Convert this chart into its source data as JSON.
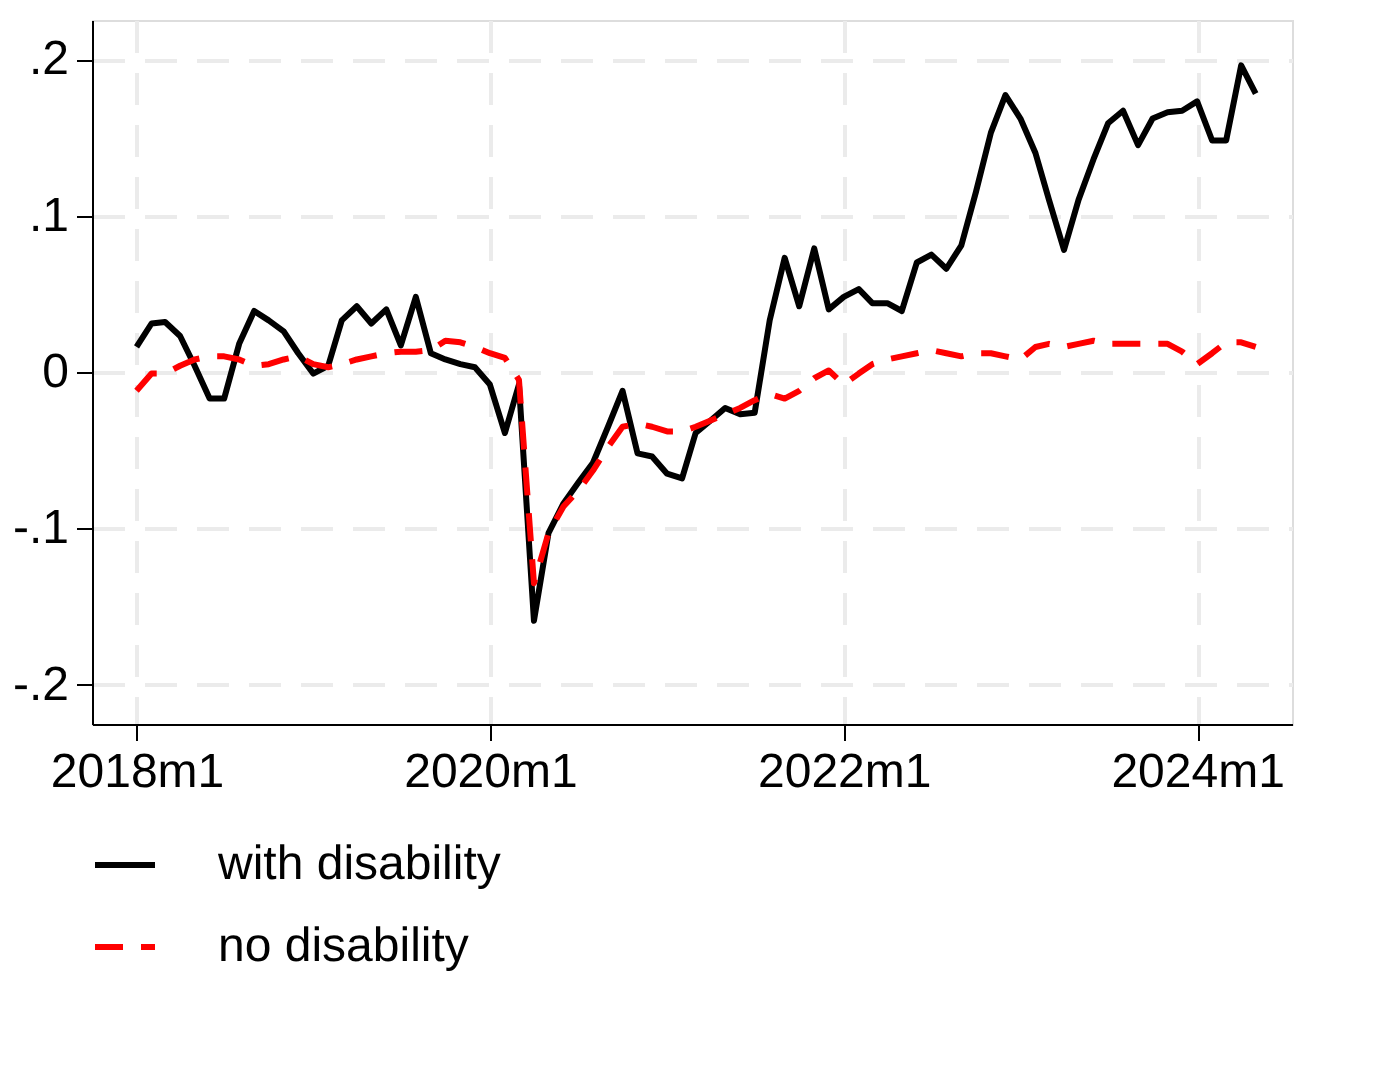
{
  "chart_data": {
    "type": "line",
    "x": [
      "2018-01",
      "2018-02",
      "2018-03",
      "2018-04",
      "2018-05",
      "2018-06",
      "2018-07",
      "2018-08",
      "2018-09",
      "2018-10",
      "2018-11",
      "2018-12",
      "2019-01",
      "2019-02",
      "2019-03",
      "2019-04",
      "2019-05",
      "2019-06",
      "2019-07",
      "2019-08",
      "2019-09",
      "2019-10",
      "2019-11",
      "2019-12",
      "2020-01",
      "2020-02",
      "2020-03",
      "2020-04",
      "2020-05",
      "2020-06",
      "2020-07",
      "2020-08",
      "2020-09",
      "2020-10",
      "2020-11",
      "2020-12",
      "2021-01",
      "2021-02",
      "2021-03",
      "2021-04",
      "2021-05",
      "2021-06",
      "2021-07",
      "2021-08",
      "2021-09",
      "2021-10",
      "2021-11",
      "2021-12",
      "2022-01",
      "2022-02",
      "2022-03",
      "2022-04",
      "2022-05",
      "2022-06",
      "2022-07",
      "2022-08",
      "2022-09",
      "2022-10",
      "2022-11",
      "2022-12",
      "2023-01",
      "2023-02",
      "2023-03",
      "2023-04",
      "2023-05",
      "2023-06",
      "2023-07",
      "2023-08",
      "2023-09",
      "2023-10",
      "2023-11",
      "2023-12",
      "2024-01",
      "2024-02",
      "2024-03",
      "2024-04",
      "2024-05"
    ],
    "series": [
      {
        "name": "with disability",
        "color": "#000000",
        "line_style": "solid",
        "values": [
          0.016,
          0.031,
          0.032,
          0.023,
          0.004,
          -0.017,
          -0.017,
          0.018,
          0.039,
          0.033,
          0.026,
          0.012,
          -0.001,
          0.004,
          0.033,
          0.042,
          0.031,
          0.04,
          0.017,
          0.048,
          0.012,
          0.008,
          0.005,
          0.003,
          -0.008,
          -0.039,
          -0.008,
          -0.159,
          -0.103,
          -0.084,
          -0.071,
          -0.058,
          -0.035,
          -0.012,
          -0.052,
          -0.054,
          -0.065,
          -0.068,
          -0.039,
          -0.031,
          -0.023,
          -0.027,
          -0.026,
          0.033,
          0.073,
          0.042,
          0.079,
          0.04,
          0.048,
          0.053,
          0.044,
          0.044,
          0.039,
          0.07,
          0.075,
          0.066,
          0.081,
          0.115,
          0.153,
          0.177,
          0.162,
          0.14,
          0.11,
          0.078,
          0.11,
          0.136,
          0.159,
          0.167,
          0.145,
          0.162,
          0.166,
          0.167,
          0.173,
          0.148,
          0.148,
          0.196,
          0.178
        ]
      },
      {
        "name": "no disability",
        "color": "#ff0000",
        "line_style": "dashed",
        "values": [
          -0.012,
          -0.001,
          -0.001,
          0.004,
          0.008,
          0.01,
          0.01,
          0.008,
          0.004,
          0.005,
          0.008,
          0.01,
          0.005,
          0.003,
          0.005,
          0.008,
          0.01,
          0.012,
          0.013,
          0.013,
          0.014,
          0.02,
          0.019,
          0.016,
          0.012,
          0.009,
          -0.005,
          -0.135,
          -0.103,
          -0.086,
          -0.076,
          -0.063,
          -0.048,
          -0.035,
          -0.033,
          -0.035,
          -0.038,
          -0.038,
          -0.035,
          -0.031,
          -0.027,
          -0.023,
          -0.018,
          -0.014,
          -0.017,
          -0.012,
          -0.004,
          0.001,
          -0.008,
          -0.001,
          0.005,
          0.008,
          0.01,
          0.012,
          0.014,
          0.012,
          0.01,
          0.012,
          0.012,
          0.01,
          0.008,
          0.016,
          0.018,
          0.016,
          0.018,
          0.02,
          0.018,
          0.018,
          0.018,
          0.018,
          0.018,
          0.013,
          0.005,
          0.012,
          0.019,
          0.019,
          0.016
        ]
      }
    ],
    "xlim": [
      "2017-10",
      "2024-07-15"
    ],
    "xticks": [
      {
        "value": "2018-01",
        "label": "2018m1"
      },
      {
        "value": "2020-01",
        "label": "2020m1"
      },
      {
        "value": "2022-01",
        "label": "2022m1"
      },
      {
        "value": "2024-01",
        "label": "2024m1"
      }
    ],
    "ylim": [
      -0.225,
      0.225
    ],
    "yticks": [
      {
        "value": -0.2,
        "label": "-.2"
      },
      {
        "value": -0.1,
        "label": "-.1"
      },
      {
        "value": 0,
        "label": "0"
      },
      {
        "value": 0.1,
        "label": ".1"
      },
      {
        "value": 0.2,
        "label": ".2"
      }
    ],
    "grid": true,
    "legend": "bottom"
  }
}
